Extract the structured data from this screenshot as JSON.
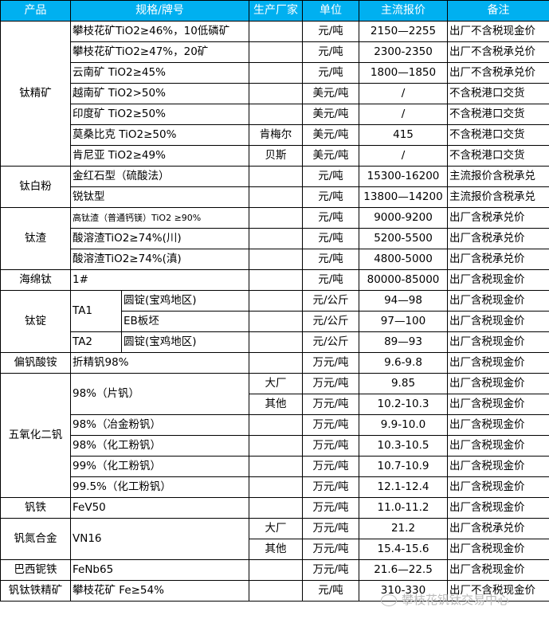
{
  "header": [
    "产品",
    "规格/牌号",
    "生产厂家",
    "单位",
    "主流报价",
    "备注"
  ],
  "colors": {
    "header_bg": "#00b0f0",
    "header_text": "#ffffff"
  },
  "products": [
    {
      "name": "钛精矿",
      "rows": [
        {
          "spec": "攀枝花矿TiO2≥46%，10低磷矿",
          "maker": "",
          "unit": "元/吨",
          "price": "2150—2255",
          "remark": "出厂不含税现金价"
        },
        {
          "spec": "攀枝花矿TiO2≥47%，20矿",
          "maker": "",
          "unit": "元/吨",
          "price": "2300-2350",
          "remark": "出厂不含税承兑价"
        },
        {
          "spec": "云南矿 TiO2≥45%",
          "maker": "",
          "unit": "元/吨",
          "price": "1800—1850",
          "remark": "出厂不含税承兑价"
        },
        {
          "spec": "越南矿 TiO2>50%",
          "maker": "",
          "unit": "美元/吨",
          "price": "/",
          "remark": "不含税港口交货"
        },
        {
          "spec": "印度矿 TiO2≥50%",
          "maker": "",
          "unit": "美元/吨",
          "price": "/",
          "remark": "不含税港口交货"
        },
        {
          "spec": "莫桑比克 TiO2≥50%",
          "maker": "肯梅尔",
          "unit": "美元/吨",
          "price": "415",
          "remark": "不含税港口交货"
        },
        {
          "spec": "肯尼亚 TiO2≥49%",
          "maker": "贝斯",
          "unit": "美元/吨",
          "price": "/",
          "remark": "不含税港口交货"
        }
      ]
    },
    {
      "name": "钛白粉",
      "rows": [
        {
          "spec": "金红石型（硫酸法）",
          "maker": "",
          "unit": "元/吨",
          "price": "15300-16200",
          "remark": "主流报价含税承兑"
        },
        {
          "spec": "锐钛型",
          "maker": "",
          "unit": "元/吨",
          "price": "13800—14200",
          "remark": "主流报价含税承兑"
        }
      ]
    },
    {
      "name": "钛渣",
      "rows": [
        {
          "spec": "高钛渣（普通钙镁）TiO2 ≥90%",
          "small": true,
          "maker": "",
          "unit": "元/吨",
          "price": "9000-9200",
          "remark": "出厂含税承兑价"
        },
        {
          "spec": "酸溶渣TiO2≥74%(川)",
          "maker": "",
          "unit": "元/吨",
          "price": "5200-5500",
          "remark": "出厂含税承兑价"
        },
        {
          "spec": "酸溶渣TiO2≥74%(滇)",
          "maker": "",
          "unit": "元/吨",
          "price": "4800-5000",
          "remark": "出厂含税承兑价"
        }
      ]
    },
    {
      "name": "海绵钛",
      "rows": [
        {
          "spec": "1#",
          "maker": "",
          "unit": "元/吨",
          "price": "80000-85000",
          "remark": "出厂含税现金价"
        }
      ]
    },
    {
      "name": "钛锭",
      "rows": [
        {
          "spec": "TA1",
          "sub": "圆锭(宝鸡地区)",
          "maker": "",
          "unit": "元/公斤",
          "price": "94—98",
          "remark": "出厂含税现金价"
        },
        {
          "spec": "TA1",
          "sub": "EB板坯",
          "maker": "",
          "unit": "元/公斤",
          "price": "97—100",
          "remark": "出厂含税现金价"
        },
        {
          "spec": "TA2",
          "sub": "圆锭(宝鸡地区)",
          "maker": "",
          "unit": "元/公斤",
          "price": "89—93",
          "remark": "出厂含税现金价"
        }
      ]
    },
    {
      "name": "偏钒酸铵",
      "rows": [
        {
          "spec": "折精钒98%",
          "maker": "",
          "unit": "万元/吨",
          "price": "9.6-9.8",
          "remark": "出厂含税现金价"
        }
      ]
    },
    {
      "name": "五氧化二钒",
      "rows": [
        {
          "spec": "98%（片钒）",
          "maker": "大厂",
          "unit": "万元/吨",
          "price": "9.85",
          "remark": "出厂含税现金价"
        },
        {
          "spec": "98%（片钒）",
          "maker": "其他",
          "unit": "万元/吨",
          "price": "10.2-10.3",
          "remark": "出厂含税现金价"
        },
        {
          "spec": "98%（冶金粉钒）",
          "maker": "",
          "unit": "万元/吨",
          "price": "9.9-10.0",
          "remark": "出厂含税现金价"
        },
        {
          "spec": "98%（化工粉钒）",
          "maker": "",
          "unit": "万元/吨",
          "price": "10.3-10.5",
          "remark": "出厂含税现金价"
        },
        {
          "spec": "99%（化工粉钒）",
          "maker": "",
          "unit": "万元/吨",
          "price": "10.7-10.9",
          "remark": "出厂含税现金价"
        },
        {
          "spec": "99.5%（化工粉钒）",
          "maker": "",
          "unit": "万元/吨",
          "price": "12.1-12.4",
          "remark": "出厂含税现金价"
        }
      ]
    },
    {
      "name": "钒铁",
      "rows": [
        {
          "spec": "FeV50",
          "maker": "",
          "unit": "万元/吨",
          "price": "11.0-11.2",
          "remark": "出厂含税现金价"
        }
      ]
    },
    {
      "name": "钒氮合金",
      "rows": [
        {
          "spec": "VN16",
          "maker": "大厂",
          "unit": "万元/吨",
          "price": "21.2",
          "remark": "出厂含税承兑价"
        },
        {
          "spec": "VN16",
          "maker": "其他",
          "unit": "万元/吨",
          "price": "15.4-15.6",
          "remark": "出厂含税现金价"
        }
      ]
    },
    {
      "name": "巴西铌铁",
      "rows": [
        {
          "spec": "FeNb65",
          "maker": "",
          "unit": "万元/吨",
          "price": "21.6—22.5",
          "remark": "出厂含税现金价"
        }
      ]
    },
    {
      "name": "钒钛铁精矿",
      "rows": [
        {
          "spec": "攀枝花矿 Fe≥54%",
          "maker": "",
          "unit": "元/吨",
          "price": "310-330",
          "remark": "出厂不含税现金价"
        }
      ]
    }
  ],
  "watermark": {
    "text": "攀枝花钒钛交易中心",
    "icon": "wechat-icon"
  }
}
